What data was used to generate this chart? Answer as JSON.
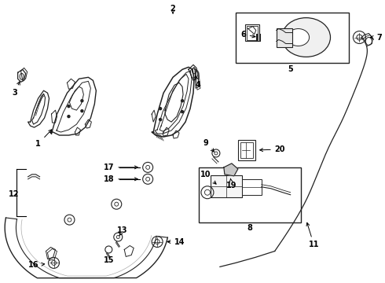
{
  "background_color": "#ffffff",
  "line_color": "#222222",
  "fig_width": 4.9,
  "fig_height": 3.6,
  "dpi": 100,
  "font_size": 7.0
}
